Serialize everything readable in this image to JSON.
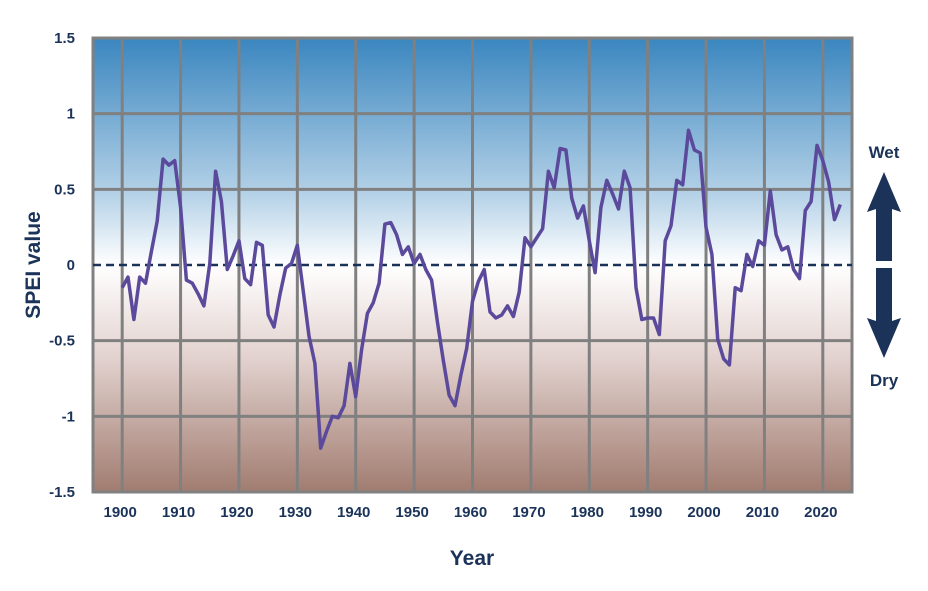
{
  "chart_data": {
    "type": "line",
    "title": "",
    "xlabel": "Year",
    "ylabel": "SPEI value",
    "xlim": [
      1895,
      2025
    ],
    "ylim": [
      -1.5,
      1.5
    ],
    "grid": true,
    "x_ticks": [
      "1900",
      "1910",
      "1920",
      "1930",
      "1940",
      "1950",
      "1960",
      "1970",
      "1980",
      "1990",
      "2000",
      "2010",
      "2020"
    ],
    "y_ticks": [
      "1.5",
      "1",
      "0.5",
      "0",
      "-0.5",
      "-1",
      "-1.5"
    ],
    "reference_line": {
      "y": 0,
      "style": "dashed"
    },
    "annotations": {
      "wet": "Wet",
      "dry": "Dry"
    },
    "colors": {
      "line": "#5b4a9b",
      "background_top": "#3a86bf",
      "background_mid": "#ffffff",
      "background_bottom": "#a17c70",
      "text": "#1b3358",
      "grid": "#808080"
    },
    "x_start": 1900,
    "values": [
      -0.15,
      -0.08,
      -0.36,
      -0.08,
      -0.12,
      0.09,
      0.29,
      0.7,
      0.66,
      0.69,
      0.38,
      -0.1,
      -0.12,
      -0.19,
      -0.27,
      0.01,
      0.62,
      0.42,
      -0.03,
      0.06,
      0.16,
      -0.09,
      -0.13,
      0.15,
      0.13,
      -0.33,
      -0.41,
      -0.2,
      -0.02,
      0.01,
      0.13,
      -0.17,
      -0.47,
      -0.65,
      -1.21,
      -1.1,
      -1.0,
      -1.01,
      -0.93,
      -0.65,
      -0.87,
      -0.56,
      -0.32,
      -0.25,
      -0.12,
      0.27,
      0.28,
      0.2,
      0.07,
      0.12,
      0.01,
      0.07,
      -0.03,
      -0.1,
      -0.38,
      -0.63,
      -0.86,
      -0.93,
      -0.73,
      -0.55,
      -0.24,
      -0.11,
      -0.03,
      -0.31,
      -0.35,
      -0.33,
      -0.27,
      -0.34,
      -0.18,
      0.18,
      0.12,
      0.18,
      0.24,
      0.62,
      0.51,
      0.77,
      0.76,
      0.44,
      0.31,
      0.39,
      0.16,
      -0.05,
      0.38,
      0.56,
      0.47,
      0.37,
      0.62,
      0.51,
      -0.15,
      -0.36,
      -0.35,
      -0.35,
      -0.46,
      0.16,
      0.26,
      0.56,
      0.53,
      0.89,
      0.76,
      0.74,
      0.25,
      0.07,
      -0.49,
      -0.62,
      -0.66,
      -0.15,
      -0.17,
      0.07,
      -0.01,
      0.16,
      0.13,
      0.49,
      0.2,
      0.1,
      0.12,
      -0.03,
      -0.09,
      0.36,
      0.42,
      0.79,
      0.69,
      0.55,
      0.3,
      0.4
    ]
  }
}
